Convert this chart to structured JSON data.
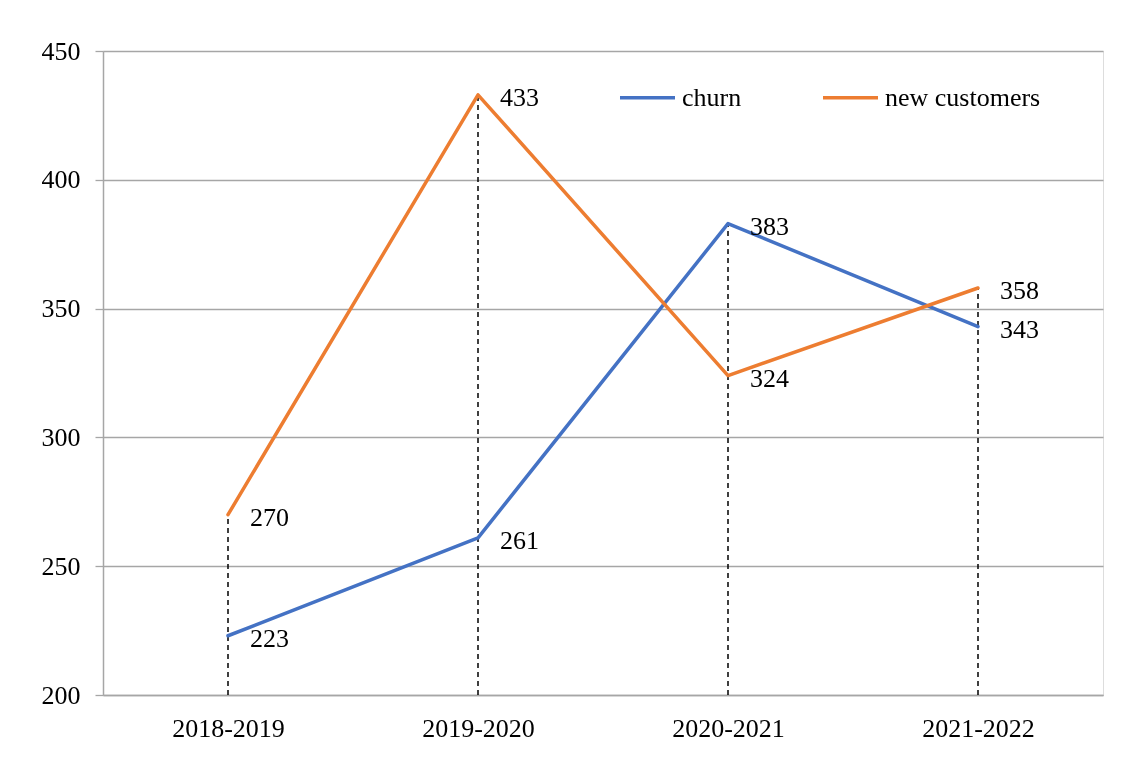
{
  "chart_data": {
    "type": "line",
    "categories": [
      "2018-2019",
      "2019-2020",
      "2020-2021",
      "2021-2022"
    ],
    "series": [
      {
        "name": "churn",
        "color": "#4472c4",
        "values": [
          223,
          261,
          383,
          343
        ]
      },
      {
        "name": "new customers",
        "color": "#ed7d31",
        "values": [
          270,
          433,
          324,
          358
        ]
      }
    ],
    "ylim": [
      200,
      450
    ],
    "yticks": [
      200,
      250,
      300,
      350,
      400,
      450
    ],
    "grid": "y",
    "legend": "top right",
    "data_labels": true,
    "line_style": "solid",
    "ref_lines": [
      {
        "axis": "x",
        "value": "2018-2019",
        "color": "#000000",
        "line_style": "dashed"
      },
      {
        "axis": "x",
        "value": "2019-2020",
        "color": "#000000",
        "line_style": "dashed"
      },
      {
        "axis": "x",
        "value": "2020-2021",
        "color": "#000000",
        "line_style": "dashed"
      },
      {
        "axis": "x",
        "value": "2021-2022",
        "color": "#000000",
        "line_style": "dashed"
      }
    ]
  }
}
